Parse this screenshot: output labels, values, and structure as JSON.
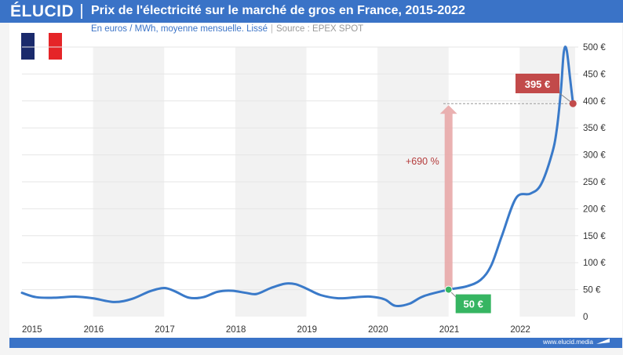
{
  "header": {
    "logo": "ÉLUCID",
    "title": "Prix de l'électricité sur le marché de gros en France, 2015-2022"
  },
  "subtitle": {
    "text": "En euros / MWh, moyenne mensuelle. Lissé",
    "separator": "|",
    "source": "Source : EPEX SPOT"
  },
  "footer": {
    "url": "www.elucid.media"
  },
  "flag": {
    "colors": [
      "#1a2a6c",
      "#ffffff",
      "#e52528"
    ]
  },
  "colors": {
    "header": "#3a73c7",
    "line": "#3a7ac9",
    "arrow": "#e8a8a8",
    "start_badge": "#36b562",
    "end_badge": "#c24a4a",
    "annotation_text": "#b43c3c",
    "band": "#f2f2f2"
  },
  "chart_data": {
    "type": "line",
    "title": "Prix de l'électricité sur le marché de gros en France, 2015-2022",
    "subtitle": "En euros / MWh, moyenne mensuelle. Lissé",
    "source": "EPEX SPOT",
    "xlabel": "",
    "ylabel": "",
    "unit": "€",
    "ylim": [
      0,
      500
    ],
    "yticks": [
      0,
      50,
      100,
      150,
      200,
      250,
      300,
      350,
      400,
      450,
      500
    ],
    "ytick_labels": [
      "0",
      "50 €",
      "100 €",
      "150 €",
      "200 €",
      "250 €",
      "300 €",
      "350 €",
      "400 €",
      "450 €",
      "500 €"
    ],
    "xlim": [
      2015,
      2022.78
    ],
    "xticks": [
      2015,
      2016,
      2017,
      2018,
      2019,
      2020,
      2021,
      2022
    ],
    "xtick_labels": [
      "2015",
      "2016",
      "2017",
      "2018",
      "2019",
      "2020",
      "2021",
      "2022"
    ],
    "grid": true,
    "alternating_year_bands": true,
    "series": [
      {
        "values": [
          [
            2015.0,
            44
          ],
          [
            2015.2,
            36
          ],
          [
            2015.45,
            35
          ],
          [
            2015.75,
            37
          ],
          [
            2016.0,
            34
          ],
          [
            2016.3,
            27
          ],
          [
            2016.55,
            33
          ],
          [
            2016.8,
            47
          ],
          [
            2017.0,
            53
          ],
          [
            2017.15,
            47
          ],
          [
            2017.35,
            35
          ],
          [
            2017.55,
            36
          ],
          [
            2017.75,
            46
          ],
          [
            2017.95,
            48
          ],
          [
            2018.15,
            44
          ],
          [
            2018.3,
            42
          ],
          [
            2018.5,
            53
          ],
          [
            2018.7,
            61
          ],
          [
            2018.85,
            60
          ],
          [
            2019.0,
            52
          ],
          [
            2019.2,
            40
          ],
          [
            2019.45,
            34
          ],
          [
            2019.7,
            36
          ],
          [
            2019.9,
            37
          ],
          [
            2020.1,
            32
          ],
          [
            2020.25,
            20
          ],
          [
            2020.45,
            24
          ],
          [
            2020.65,
            38
          ],
          [
            2021.0,
            50
          ],
          [
            2021.25,
            56
          ],
          [
            2021.45,
            68
          ],
          [
            2021.6,
            95
          ],
          [
            2021.75,
            150
          ],
          [
            2021.95,
            220
          ],
          [
            2022.15,
            228
          ],
          [
            2022.3,
            245
          ],
          [
            2022.45,
            300
          ],
          [
            2022.52,
            345
          ],
          [
            2022.58,
            420
          ],
          [
            2022.62,
            490
          ],
          [
            2022.66,
            495
          ],
          [
            2022.71,
            440
          ],
          [
            2022.75,
            395
          ]
        ]
      }
    ],
    "annotations": {
      "start": {
        "x": 2021.0,
        "y": 50,
        "label": "50 €"
      },
      "end": {
        "x": 2022.75,
        "y": 395,
        "label": "395 €"
      },
      "change": {
        "label": "+690 %"
      }
    }
  }
}
